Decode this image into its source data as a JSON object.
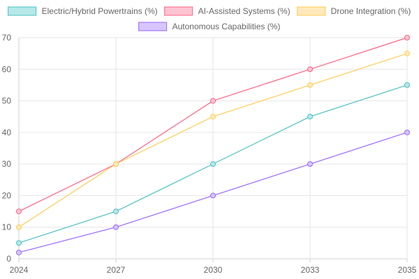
{
  "chart_data": {
    "type": "line",
    "x": [
      "2024",
      "2027",
      "2030",
      "2033",
      "2035"
    ],
    "ylim": [
      0,
      70
    ],
    "y_ticks": [
      0,
      10,
      20,
      30,
      40,
      50,
      60,
      70
    ],
    "grid": true,
    "legend_position": "top",
    "series": [
      {
        "name": "Electric/Hybrid Powertrains (%)",
        "values": [
          5,
          15,
          30,
          45,
          55
        ],
        "color": "#4bc0c0",
        "fill": "#b6e8e8"
      },
      {
        "name": "AI-Assisted Systems (%)",
        "values": [
          15,
          30,
          50,
          60,
          70
        ],
        "color": "#ff6384",
        "fill": "#ffc4d1"
      },
      {
        "name": "Drone Integration (%)",
        "values": [
          10,
          30,
          45,
          55,
          65
        ],
        "color": "#ffcd56",
        "fill": "#ffe9bc"
      },
      {
        "name": "Autonomous Capabilities (%)",
        "values": [
          2,
          10,
          20,
          30,
          40
        ],
        "color": "#9966ff",
        "fill": "#d6c5ff"
      }
    ]
  }
}
